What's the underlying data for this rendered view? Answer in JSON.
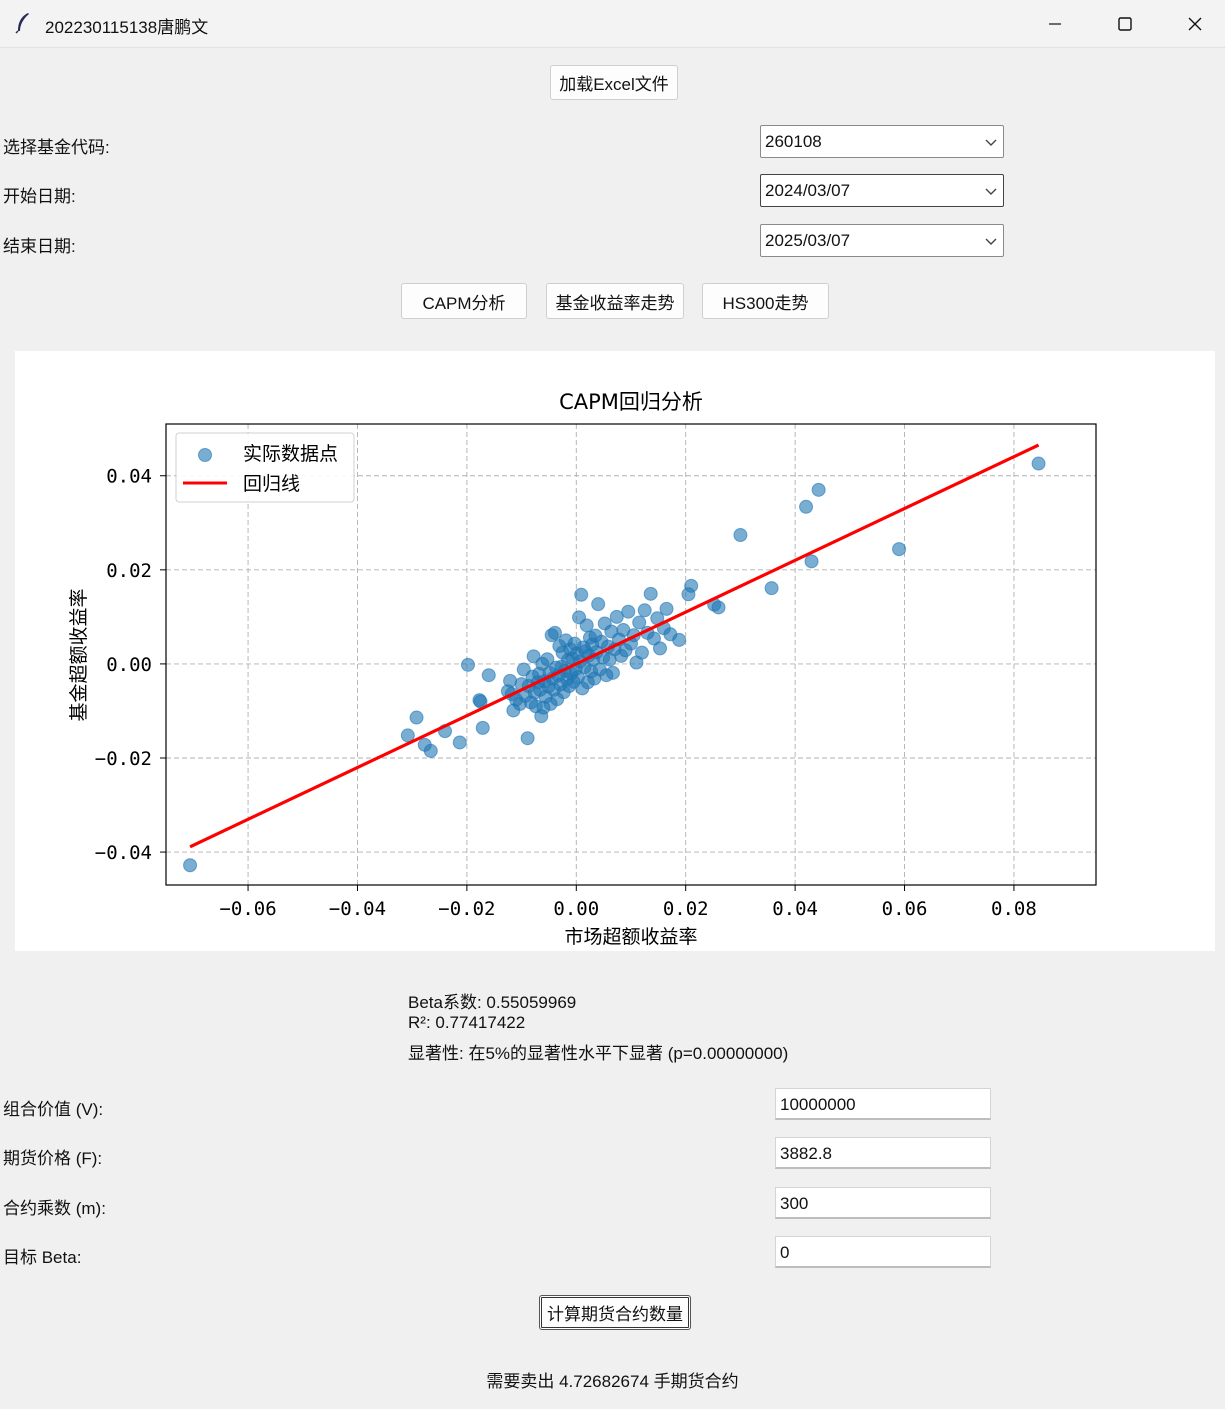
{
  "window": {
    "title": "202230115138唐鹏文",
    "controls": [
      "minimize",
      "maximize",
      "close"
    ]
  },
  "toolbar": {
    "load_label": "加载Excel文件"
  },
  "filters": {
    "fund_code": {
      "label": "选择基金代码:",
      "value": "260108"
    },
    "start_date": {
      "label": "开始日期:",
      "value": "2024/03/07"
    },
    "end_date": {
      "label": "结束日期:",
      "value": "2025/03/07"
    }
  },
  "actions": {
    "capm_label": "CAPM分析",
    "fund_trend_label": "基金收益率走势",
    "hs300_label": "HS300走势"
  },
  "chart_data": {
    "type": "scatter",
    "title": "CAPM回归分析",
    "xlabel": "市场超额收益率",
    "ylabel": "基金超额收益率",
    "xlim": [
      -0.075,
      0.095
    ],
    "ylim": [
      -0.047,
      0.051
    ],
    "xticks": [
      -0.06,
      -0.04,
      -0.02,
      0.0,
      0.02,
      0.04,
      0.06,
      0.08
    ],
    "yticks": [
      -0.04,
      -0.02,
      0.0,
      0.02,
      0.04
    ],
    "xtick_labels": [
      "−0.06",
      "−0.04",
      "−0.02",
      "0.00",
      "0.02",
      "0.04",
      "0.06",
      "0.08"
    ],
    "ytick_labels": [
      "−0.04",
      "−0.02",
      "0.00",
      "0.02",
      "0.04"
    ],
    "grid": true,
    "legend_position": "top-left",
    "series": [
      {
        "name": "实际数据点",
        "kind": "scatter",
        "color": "#1f77b4",
        "points": [
          [
            -0.0706,
            -0.0428
          ],
          [
            -0.0308,
            -0.0152
          ],
          [
            -0.0292,
            -0.0114
          ],
          [
            -0.0277,
            -0.0172
          ],
          [
            -0.0266,
            -0.0185
          ],
          [
            -0.024,
            -0.0143
          ],
          [
            -0.0213,
            -0.0167
          ],
          [
            -0.0198,
            -0.0002
          ],
          [
            -0.0177,
            -0.0077
          ],
          [
            -0.0175,
            -0.008
          ],
          [
            -0.0171,
            -0.0136
          ],
          [
            -0.016,
            -0.0024
          ],
          [
            -0.0125,
            -0.0058
          ],
          [
            -0.0121,
            -0.0036
          ],
          [
            -0.0118,
            -0.0064
          ],
          [
            -0.0115,
            -0.0099
          ],
          [
            -0.011,
            -0.0076
          ],
          [
            -0.0103,
            -0.0085
          ],
          [
            -0.01,
            -0.0043
          ],
          [
            -0.0096,
            -0.0012
          ],
          [
            -0.0093,
            -0.0068
          ],
          [
            -0.0089,
            -0.0158
          ],
          [
            -0.0087,
            -0.0047
          ],
          [
            -0.0083,
            -0.0082
          ],
          [
            -0.008,
            -0.0027
          ],
          [
            -0.0078,
            0.0016
          ],
          [
            -0.0076,
            -0.0061
          ],
          [
            -0.0074,
            -0.009
          ],
          [
            -0.007,
            -0.0039
          ],
          [
            -0.0068,
            -0.0021
          ],
          [
            -0.0066,
            -0.0055
          ],
          [
            -0.0064,
            -0.0111
          ],
          [
            -0.0062,
            0.0
          ],
          [
            -0.006,
            -0.0093
          ],
          [
            -0.0058,
            -0.0037
          ],
          [
            -0.0056,
            -0.007
          ],
          [
            -0.0053,
            0.001
          ],
          [
            -0.0051,
            -0.0048
          ],
          [
            -0.0049,
            -0.0019
          ],
          [
            -0.0047,
            -0.0085
          ],
          [
            -0.0045,
            0.0061
          ],
          [
            -0.0043,
            -0.0031
          ],
          [
            -0.0041,
            -0.0055
          ],
          [
            -0.0039,
            0.0066
          ],
          [
            -0.0037,
            -0.0008
          ],
          [
            -0.0035,
            -0.0075
          ],
          [
            -0.0033,
            -0.0025
          ],
          [
            -0.0031,
            0.0038
          ],
          [
            -0.0029,
            -0.0044
          ],
          [
            -0.0027,
            -0.0006
          ],
          [
            -0.0025,
            0.0024
          ],
          [
            -0.0023,
            -0.006
          ],
          [
            -0.0021,
            -0.0015
          ],
          [
            -0.0019,
            0.005
          ],
          [
            -0.0017,
            -0.0033
          ],
          [
            -0.0015,
            0.0008
          ],
          [
            -0.0013,
            -0.0047
          ],
          [
            -0.0011,
            0.0031
          ],
          [
            -0.0009,
            -0.002
          ],
          [
            -0.0007,
            0.0012
          ],
          [
            -0.0005,
            -0.0038
          ],
          [
            -0.0003,
            0.0043
          ],
          [
            -0.0001,
            -0.0011
          ],
          [
            0.0001,
            0.0022
          ],
          [
            0.0003,
            -0.0028
          ],
          [
            0.0005,
            0.0099
          ],
          [
            0.0007,
            0.0005
          ],
          [
            0.0009,
            0.0147
          ],
          [
            0.0011,
            -0.0052
          ],
          [
            0.0013,
            0.0035
          ],
          [
            0.0015,
            -0.0007
          ],
          [
            0.0017,
            0.0027
          ],
          [
            0.0019,
            0.0082
          ],
          [
            0.0021,
            -0.0039
          ],
          [
            0.0023,
            0.0018
          ],
          [
            0.0025,
            0.0056
          ],
          [
            0.0027,
            -0.0016
          ],
          [
            0.0029,
            0.0041
          ],
          [
            0.0031,
            0.0009
          ],
          [
            0.0033,
            -0.0031
          ],
          [
            0.0035,
            0.006
          ],
          [
            0.0037,
            0.0025
          ],
          [
            0.004,
            0.0127
          ],
          [
            0.0043,
            -0.0012
          ],
          [
            0.0046,
            0.0047
          ],
          [
            0.0049,
            0.0014
          ],
          [
            0.0052,
            0.0086
          ],
          [
            0.0055,
            -0.0024
          ],
          [
            0.0058,
            0.0037
          ],
          [
            0.0061,
            0.0009
          ],
          [
            0.0064,
            0.0069
          ],
          [
            0.0067,
            -0.0019
          ],
          [
            0.007,
            0.0031
          ],
          [
            0.0074,
            0.01
          ],
          [
            0.0078,
            0.0052
          ],
          [
            0.0082,
            0.0017
          ],
          [
            0.0086,
            0.0072
          ],
          [
            0.009,
            0.0029
          ],
          [
            0.0095,
            0.0111
          ],
          [
            0.01,
            0.0043
          ],
          [
            0.0105,
            0.0061
          ],
          [
            0.011,
            0.0003
          ],
          [
            0.0115,
            0.0088
          ],
          [
            0.012,
            0.0024
          ],
          [
            0.0125,
            0.0114
          ],
          [
            0.013,
            0.0066
          ],
          [
            0.0136,
            0.0149
          ],
          [
            0.0142,
            0.0054
          ],
          [
            0.0148,
            0.0097
          ],
          [
            0.0153,
            0.0033
          ],
          [
            0.016,
            0.0076
          ],
          [
            0.0165,
            0.0117
          ],
          [
            0.0172,
            0.0063
          ],
          [
            0.0188,
            0.0051
          ],
          [
            0.0205,
            0.0148
          ],
          [
            0.021,
            0.0166
          ],
          [
            0.0252,
            0.0126
          ],
          [
            0.026,
            0.012
          ],
          [
            0.03,
            0.0274
          ],
          [
            0.0357,
            0.0161
          ],
          [
            0.042,
            0.0334
          ],
          [
            0.043,
            0.0218
          ],
          [
            0.0443,
            0.037
          ],
          [
            0.059,
            0.0244
          ],
          [
            0.0845,
            0.0426
          ]
        ]
      },
      {
        "name": "回归线",
        "kind": "line",
        "color": "#ff0000",
        "intercept": 0.0,
        "slope": 0.55059969,
        "x_range": [
          -0.0706,
          0.0845
        ]
      }
    ]
  },
  "stats": {
    "beta": "Beta系数: 0.55059969",
    "r2": "R²: 0.77417422",
    "significance": "显著性: 在5%的显著性水平下显著 (p=0.00000000)"
  },
  "hedge": {
    "portfolio_value": {
      "label": "组合价值 (V):",
      "value": "10000000"
    },
    "futures_price": {
      "label": "期货价格 (F):",
      "value": "3882.8"
    },
    "multiplier": {
      "label": "合约乘数 (m):",
      "value": "300"
    },
    "target_beta": {
      "label": "目标 Beta:",
      "value": "0"
    },
    "calc_label": "计算期货合约数量",
    "result": "需要卖出 4.72682674 手期货合约"
  }
}
